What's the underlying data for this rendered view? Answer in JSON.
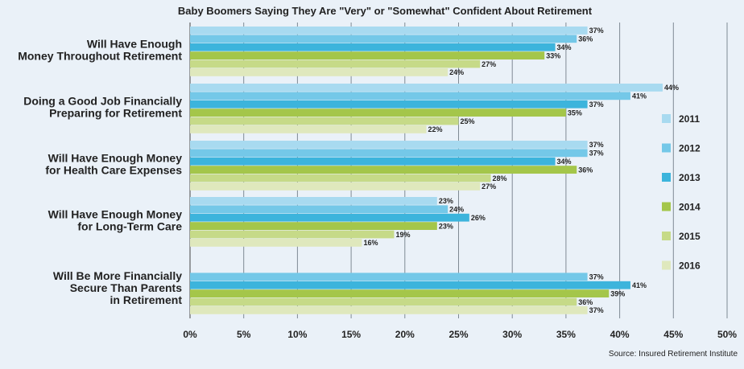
{
  "chart_data": {
    "type": "bar",
    "orientation": "horizontal",
    "title": "Baby Boomers Saying They Are \"Very\" or \"Somewhat\" Confident About Retirement",
    "source": "Source: Insured Retirement Institute",
    "categories": [
      [
        "Will Have Enough",
        "Money Throughout Retirement"
      ],
      [
        "Doing a Good Job Financially",
        "Preparing for Retirement"
      ],
      [
        "Will Have Enough Money",
        "for Health Care Expenses"
      ],
      [
        "Will Have Enough Money",
        "for Long-Term Care"
      ],
      [
        "Will Be More Financially",
        "Secure Than Parents",
        "in Retirement"
      ]
    ],
    "series": [
      {
        "name": "2011",
        "color": "#a8daf0",
        "values": [
          37,
          44,
          37,
          23,
          null
        ]
      },
      {
        "name": "2012",
        "color": "#74c8e8",
        "values": [
          36,
          41,
          37,
          24,
          37
        ]
      },
      {
        "name": "2013",
        "color": "#3cb4dc",
        "values": [
          34,
          37,
          34,
          26,
          41
        ]
      },
      {
        "name": "2014",
        "color": "#a4c64a",
        "values": [
          33,
          35,
          36,
          23,
          39
        ]
      },
      {
        "name": "2015",
        "color": "#c6da88",
        "values": [
          27,
          25,
          28,
          19,
          36
        ]
      },
      {
        "name": "2016",
        "color": "#dfe8bd",
        "values": [
          24,
          22,
          27,
          16,
          37
        ]
      }
    ],
    "value_suffix": "%",
    "xlim": [
      0,
      50
    ],
    "x_ticks": [
      "0%",
      "5%",
      "10%",
      "15%",
      "20%",
      "25%",
      "30%",
      "35%",
      "40%",
      "45%",
      "50%"
    ],
    "grid": true,
    "legend_position": "right"
  }
}
